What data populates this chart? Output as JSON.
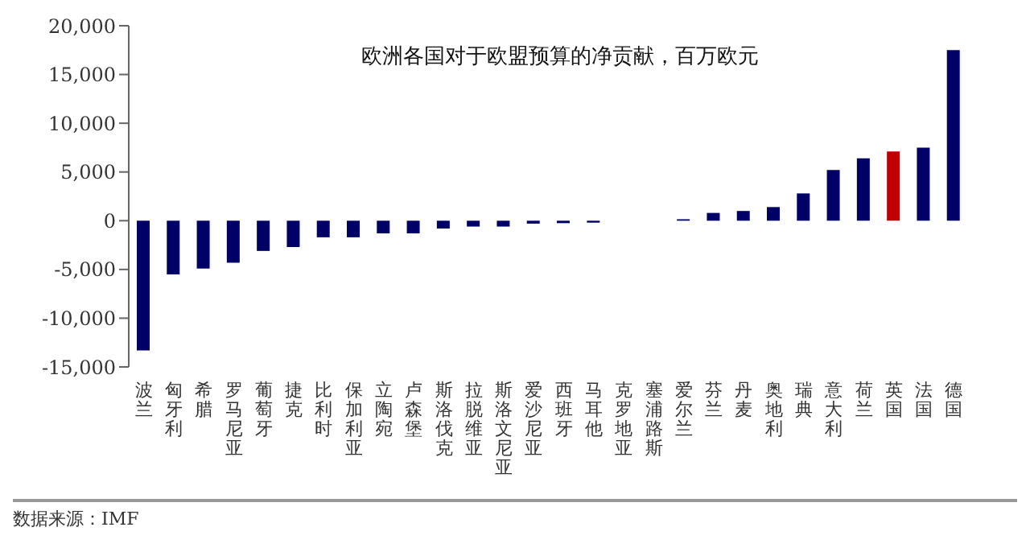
{
  "chart_data": {
    "type": "bar",
    "title": "欧洲各国对于欧盟预算的净贡献，百万欧元",
    "categories": [
      "波兰",
      "匈牙利",
      "希腊",
      "罗马尼亚",
      "葡萄牙",
      "捷克",
      "比利时",
      "保加利亚",
      "立陶宛",
      "卢森堡",
      "斯洛伐克",
      "拉脱维亚",
      "斯洛文尼亚",
      "爱沙尼亚",
      "西班牙",
      "马耳他",
      "克罗地亚",
      "塞浦路斯",
      "爱尔兰",
      "芬兰",
      "丹麦",
      "奥地利",
      "瑞典",
      "意大利",
      "荷兰",
      "英国",
      "法国",
      "德国"
    ],
    "values": [
      -13300,
      -5500,
      -4900,
      -4300,
      -3100,
      -2700,
      -1700,
      -1700,
      -1300,
      -1300,
      -800,
      -600,
      -600,
      -300,
      -250,
      -200,
      0,
      0,
      150,
      800,
      1000,
      1400,
      2800,
      5200,
      6400,
      7100,
      7500,
      17500
    ],
    "colors": [
      "#000066",
      "#000066",
      "#000066",
      "#000066",
      "#000066",
      "#000066",
      "#000066",
      "#000066",
      "#000066",
      "#000066",
      "#000066",
      "#000066",
      "#000066",
      "#000066",
      "#000066",
      "#000066",
      "#000066",
      "#000066",
      "#000066",
      "#000066",
      "#000066",
      "#000066",
      "#000066",
      "#000066",
      "#000066",
      "#c00000",
      "#000066",
      "#000066"
    ],
    "ylim": [
      -15000,
      20000
    ],
    "yticks": [
      {
        "value": -15000,
        "label": "-15,000"
      },
      {
        "value": -10000,
        "label": "-10,000"
      },
      {
        "value": -5000,
        "label": "-5,000"
      },
      0,
      {
        "value": 5000,
        "label": "5,000"
      },
      {
        "value": 10000,
        "label": "10,000"
      },
      {
        "value": 15000,
        "label": "15,000"
      },
      {
        "value": 20000,
        "label": "20,000"
      }
    ],
    "grid": false,
    "legend": false,
    "annotations": [
      "数据来源：IMF"
    ]
  }
}
